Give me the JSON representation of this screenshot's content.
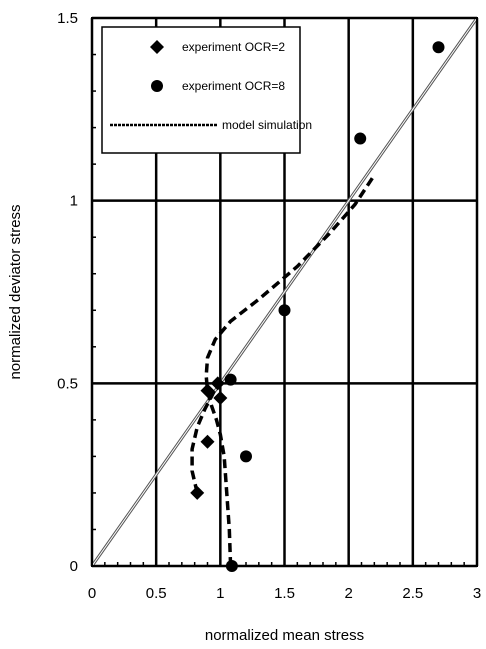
{
  "chart_data": {
    "type": "scatter",
    "xlabel": "normalized mean stress",
    "ylabel": "normalized deviator stress",
    "xlim": [
      0,
      3
    ],
    "ylim": [
      0,
      1.5
    ],
    "x_ticks": [
      "0",
      "0.5",
      "1",
      "1.5",
      "2",
      "2.5",
      "3"
    ],
    "y_ticks": [
      "0",
      "0.5",
      "1",
      "1.5"
    ],
    "grid": true,
    "legend_position": "top-left",
    "series": [
      {
        "name": "experiment OCR=2",
        "kind": "points",
        "marker": "diamond",
        "x": [
          0.82,
          0.9,
          0.9,
          0.98,
          1.0
        ],
        "y": [
          0.2,
          0.34,
          0.48,
          0.5,
          0.46
        ]
      },
      {
        "name": "experiment OCR=8",
        "kind": "points",
        "marker": "circle",
        "x": [
          1.09,
          1.08,
          1.2,
          1.5,
          2.09,
          2.7
        ],
        "y": [
          0.0,
          0.51,
          0.3,
          0.7,
          1.17,
          1.42
        ]
      },
      {
        "name": "model simulation",
        "kind": "dashed-line",
        "paths": [
          {
            "x": [
              0.82,
              0.78,
              0.78,
              0.82,
              0.88,
              0.94,
              0.98
            ],
            "y": [
              0.2,
              0.26,
              0.32,
              0.38,
              0.43,
              0.47,
              0.5
            ]
          },
          {
            "x": [
              1.08,
              1.07,
              1.05,
              1.03,
              1.0,
              0.97,
              0.93,
              0.9,
              0.89,
              0.9,
              0.96,
              1.08,
              1.3,
              1.6,
              1.85,
              2.05,
              2.2
            ],
            "y": [
              0.0,
              0.1,
              0.2,
              0.3,
              0.36,
              0.4,
              0.44,
              0.48,
              0.52,
              0.57,
              0.62,
              0.67,
              0.73,
              0.82,
              0.91,
              0.99,
              1.07
            ]
          }
        ]
      },
      {
        "kind": "reference-line",
        "x": [
          0,
          3
        ],
        "y": [
          0,
          1.5
        ]
      }
    ]
  }
}
